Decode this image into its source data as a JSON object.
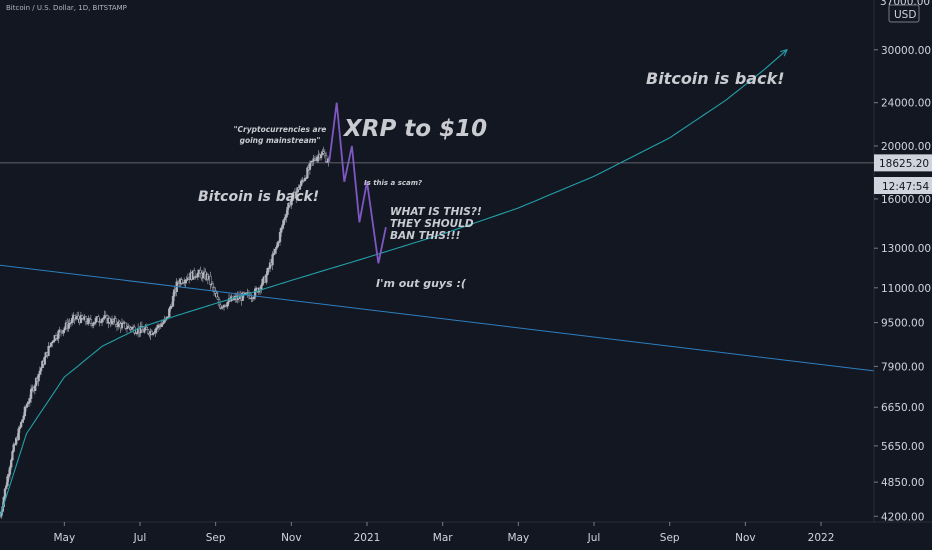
{
  "header": {
    "symbol_text": "Bitcoin / U.S. Dollar, 1D, BITSTAMP"
  },
  "price_axis": {
    "currency_label": "USD",
    "current_price": "18625.20",
    "countdown": "12:47:54",
    "partial_top_label": "37000.00"
  },
  "colors": {
    "background": "#131722",
    "candles": "#b2b5be",
    "trendline": "#2e7fbf",
    "curve": "#22a0a8",
    "drawing": "#7e57c2",
    "axis_text": "#d1d4dc",
    "annotation_text": "#c9cbd1"
  },
  "annotations": [
    {
      "id": "bitcoin-back-1",
      "text": "Bitcoin is back!"
    },
    {
      "id": "crypto-mainstream-line1",
      "text": "\"Cryptocurrencies are"
    },
    {
      "id": "crypto-mainstream-line2",
      "text": "going mainstream\""
    },
    {
      "id": "xrp",
      "text": "XRP to $10"
    },
    {
      "id": "scam",
      "text": "Is this a scam?"
    },
    {
      "id": "what-line1",
      "text": "WHAT IS THIS?!"
    },
    {
      "id": "what-line2",
      "text": "THEY SHOULD"
    },
    {
      "id": "what-line3",
      "text": "BAN THIS!!!"
    },
    {
      "id": "out",
      "text": "I'm out guys :("
    },
    {
      "id": "bitcoin-back-2",
      "text": "Bitcoin is back!"
    }
  ],
  "chart_data": {
    "type": "candlestick",
    "title": "Bitcoin / U.S. Dollar, 1D, BITSTAMP",
    "y_scale": "log",
    "y_unit": "USD",
    "ylim": [
      4100,
      37000
    ],
    "y_ticks": [
      "30000.00",
      "24000.00",
      "20000.00",
      "16000.00",
      "13000.00",
      "11000.00",
      "9500.00",
      "7900.00",
      "6650.00",
      "5650.00",
      "4850.00",
      "4200.00"
    ],
    "y_tick_values": [
      30000,
      24000,
      20000,
      16000,
      13000,
      11000,
      9500,
      7900,
      6650,
      5650,
      4850,
      4200
    ],
    "x_ticks": [
      "May",
      "Jul",
      "Sep",
      "Nov",
      "2021",
      "Mar",
      "May",
      "Jul",
      "Sep",
      "Nov",
      "2022"
    ],
    "x_tick_months": [
      1,
      3,
      5,
      7,
      9,
      11,
      13,
      15,
      17,
      19,
      21
    ],
    "x_range_months": [
      -0.7,
      22.4
    ],
    "price_series_monthly": [
      {
        "m": -0.7,
        "p": 4200
      },
      {
        "m": -0.4,
        "p": 5400
      },
      {
        "m": 0.0,
        "p": 6700
      },
      {
        "m": 0.3,
        "p": 7600
      },
      {
        "m": 0.7,
        "p": 8900
      },
      {
        "m": 1.0,
        "p": 9300
      },
      {
        "m": 1.3,
        "p": 9700
      },
      {
        "m": 1.7,
        "p": 9500
      },
      {
        "m": 2.0,
        "p": 9700
      },
      {
        "m": 2.5,
        "p": 9400
      },
      {
        "m": 3.0,
        "p": 9200
      },
      {
        "m": 3.3,
        "p": 9150
      },
      {
        "m": 3.7,
        "p": 9600
      },
      {
        "m": 4.0,
        "p": 11300
      },
      {
        "m": 4.5,
        "p": 11700
      },
      {
        "m": 4.8,
        "p": 11500
      },
      {
        "m": 5.1,
        "p": 10200
      },
      {
        "m": 5.5,
        "p": 10500
      },
      {
        "m": 6.0,
        "p": 10700
      },
      {
        "m": 6.3,
        "p": 11400
      },
      {
        "m": 6.6,
        "p": 13000
      },
      {
        "m": 6.9,
        "p": 15500
      },
      {
        "m": 7.2,
        "p": 16800
      },
      {
        "m": 7.6,
        "p": 18900
      },
      {
        "m": 7.8,
        "p": 19500
      },
      {
        "m": 8.0,
        "p": 18700
      }
    ],
    "projection_path": [
      {
        "m": 8.0,
        "p": 18700
      },
      {
        "m": 8.2,
        "p": 24000
      },
      {
        "m": 8.4,
        "p": 17200
      },
      {
        "m": 8.6,
        "p": 20000
      },
      {
        "m": 8.8,
        "p": 14500
      },
      {
        "m": 9.0,
        "p": 17200
      },
      {
        "m": 9.3,
        "p": 12200
      },
      {
        "m": 9.5,
        "p": 14200
      }
    ],
    "trendline": [
      {
        "m": -0.7,
        "p": 12100
      },
      {
        "m": 22.4,
        "p": 7750
      }
    ],
    "support_curve": [
      {
        "m": -0.7,
        "p": 4200
      },
      {
        "m": 0.0,
        "p": 5950
      },
      {
        "m": 1.0,
        "p": 7550
      },
      {
        "m": 2.0,
        "p": 8600
      },
      {
        "m": 3.0,
        "p": 9300
      },
      {
        "m": 4.0,
        "p": 9800
      },
      {
        "m": 5.0,
        "p": 10300
      },
      {
        "m": 6.0,
        "p": 10800
      },
      {
        "m": 7.0,
        "p": 11350
      },
      {
        "m": 9.0,
        "p": 12500
      },
      {
        "m": 11.0,
        "p": 13800
      },
      {
        "m": 13.0,
        "p": 15400
      },
      {
        "m": 15.0,
        "p": 17600
      },
      {
        "m": 17.0,
        "p": 20700
      },
      {
        "m": 18.5,
        "p": 24300
      },
      {
        "m": 19.5,
        "p": 27600
      },
      {
        "m": 20.1,
        "p": 30000
      }
    ]
  }
}
